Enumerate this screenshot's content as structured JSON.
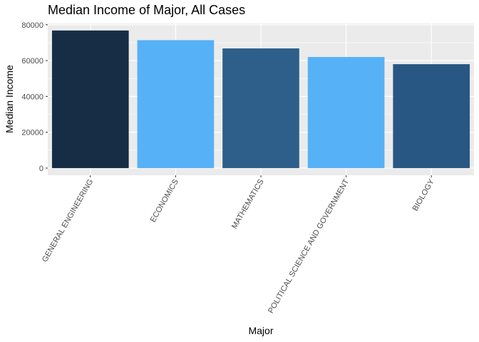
{
  "chart_data": {
    "type": "bar",
    "title": "Median Income of Major, All Cases",
    "xlabel": "Major",
    "ylabel": "Median Income",
    "categories": [
      "GENERAL ENGINEERING",
      "ECONOMICS",
      "MATHEMATICS",
      "POLITICAL SCIENCE AND GOVERNMENT",
      "BIOLOGY"
    ],
    "values": [
      76800,
      71400,
      66800,
      62000,
      58000
    ],
    "bar_colors": [
      "#172d46",
      "#56b1f7",
      "#2d5f8a",
      "#56b1f7",
      "#295783"
    ],
    "ylim": [
      -4000,
      80700
    ],
    "yticks": [
      0,
      20000,
      40000,
      60000,
      80000
    ],
    "ytick_labels": [
      "0",
      "20000",
      "40000",
      "60000",
      "80000"
    ],
    "panel_background": "#ebebeb",
    "grid": true,
    "grid_color": "#ffffff",
    "legend": "none"
  }
}
